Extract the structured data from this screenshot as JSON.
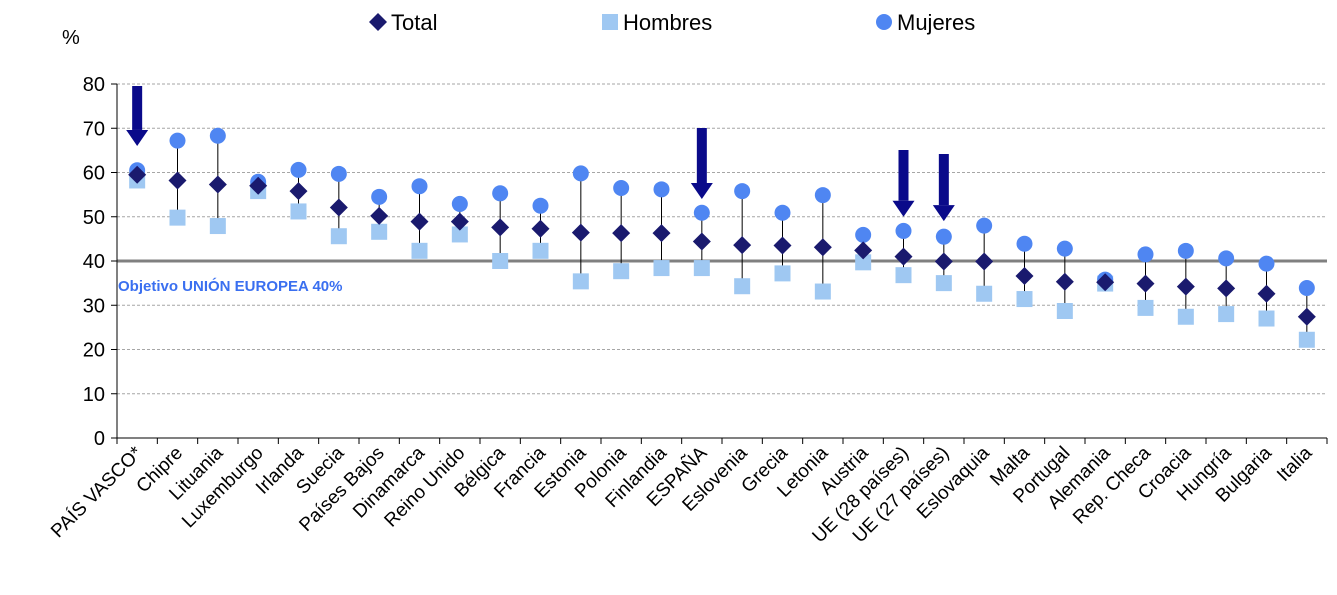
{
  "chart_data": {
    "type": "scatter",
    "ylabel": "%",
    "ylim": [
      0,
      80
    ],
    "yticks": [
      "0",
      "10",
      "20",
      "30",
      "40",
      "50",
      "60",
      "70",
      "80"
    ],
    "grid": true,
    "legend_position": "top-center",
    "categories": [
      "PAÍS VASCO*",
      "Chipre",
      "Lituania",
      "Luxemburgo",
      "Irlanda",
      "Suecia",
      "Países Bajos",
      "Dinamarca",
      "Reino Unido",
      "Bélgica",
      "Francia",
      "Estonia",
      "Polonia",
      "Finlandia",
      "ESPAÑA",
      "Eslovenia",
      "Grecia",
      "Letonia",
      "Austria",
      "UE (28 países)",
      "UE (27 países)",
      "Eslovaquia",
      "Malta",
      "Portugal",
      "Alemania",
      "Rep. Checa",
      "Croacia",
      "Hungría",
      "Bulgaria",
      "Italia"
    ],
    "series": [
      {
        "name": "Total",
        "marker": "diamond",
        "color": "#1a1a6e",
        "values": [
          59.5,
          58.2,
          57.3,
          57.0,
          55.8,
          52.1,
          50.2,
          48.9,
          48.9,
          47.6,
          47.3,
          46.4,
          46.3,
          46.3,
          44.4,
          43.6,
          43.5,
          43.1,
          42.4,
          41.0,
          39.9,
          39.9,
          36.6,
          35.3,
          35.2,
          34.9,
          34.2,
          33.8,
          32.6,
          27.4
        ]
      },
      {
        "name": "Hombres",
        "marker": "square",
        "color": "#9fc8f2",
        "values": [
          58.2,
          49.8,
          47.9,
          55.8,
          51.2,
          45.6,
          46.6,
          42.3,
          46.0,
          40.0,
          42.3,
          35.4,
          37.7,
          38.4,
          38.4,
          34.3,
          37.2,
          33.1,
          39.7,
          36.8,
          35.0,
          32.6,
          31.4,
          28.7,
          34.9,
          29.4,
          27.4,
          28.0,
          27.0,
          22.2
        ]
      },
      {
        "name": "Mujeres",
        "marker": "circle",
        "color": "#4f86f2",
        "values": [
          60.5,
          67.2,
          68.3,
          57.9,
          60.6,
          59.7,
          54.5,
          56.9,
          52.9,
          55.3,
          52.5,
          59.8,
          56.5,
          56.2,
          50.9,
          55.8,
          50.9,
          54.9,
          45.9,
          46.8,
          45.5,
          48.0,
          43.9,
          42.8,
          35.8,
          41.5,
          42.3,
          40.6,
          39.4,
          33.9
        ]
      }
    ],
    "target_line": {
      "value": 40,
      "label": "Objetivo UNIÓN EUROPEA  40%"
    },
    "highlight_arrows": [
      "PAÍS VASCO*",
      "ESPAÑA",
      "UE (28 países)",
      "UE (27 países)"
    ]
  }
}
